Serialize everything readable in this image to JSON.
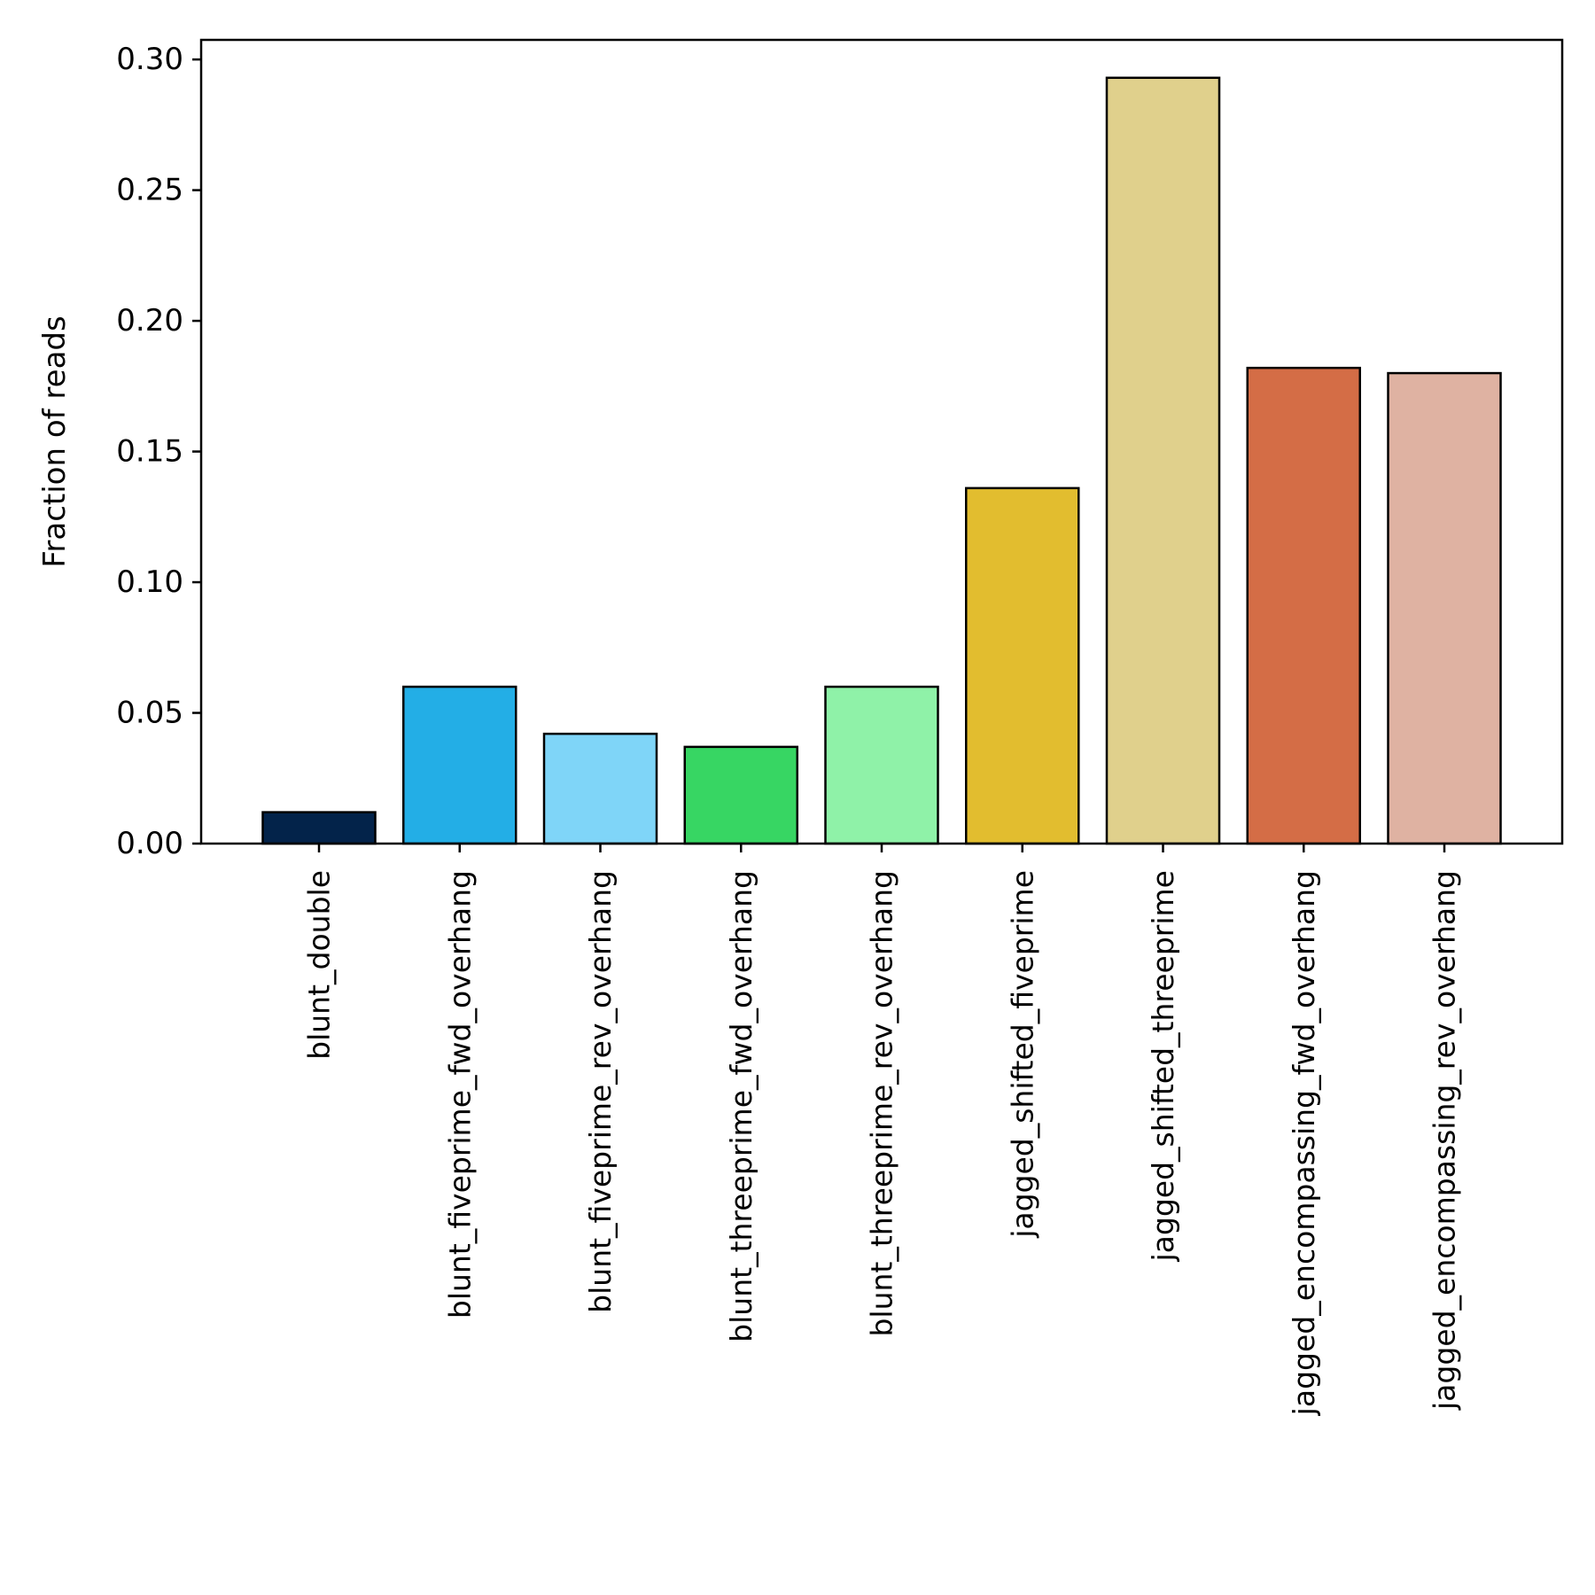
{
  "chart_data": {
    "type": "bar",
    "title": "",
    "xlabel": "",
    "ylabel": "Fraction of reads",
    "ylim": [
      0,
      0.3075
    ],
    "yticks": [
      "0.00",
      "0.05",
      "0.10",
      "0.15",
      "0.20",
      "0.25",
      "0.30"
    ],
    "yticks_values": [
      0,
      0.05,
      0.1,
      0.15,
      0.2,
      0.25,
      0.3
    ],
    "grid": false,
    "categories": [
      "blunt_double",
      "blunt_fiveprime_fwd_overhang",
      "blunt_fiveprime_rev_overhang",
      "blunt_threeprime_fwd_overhang",
      "blunt_threeprime_rev_overhang",
      "jagged_shifted_fiveprime",
      "jagged_shifted_threeprime",
      "jagged_encompassing_fwd_overhang",
      "jagged_encompassing_rev_overhang"
    ],
    "values": [
      0.012,
      0.06,
      0.042,
      0.037,
      0.06,
      0.136,
      0.293,
      0.182,
      0.18
    ],
    "colors": [
      "#03234a",
      "#23aee6",
      "#7fd5f8",
      "#37d663",
      "#8ff2a8",
      "#e2bd2f",
      "#e0d08c",
      "#d46d46",
      "#dfb2a2"
    ],
    "edge_color": "#000000"
  }
}
